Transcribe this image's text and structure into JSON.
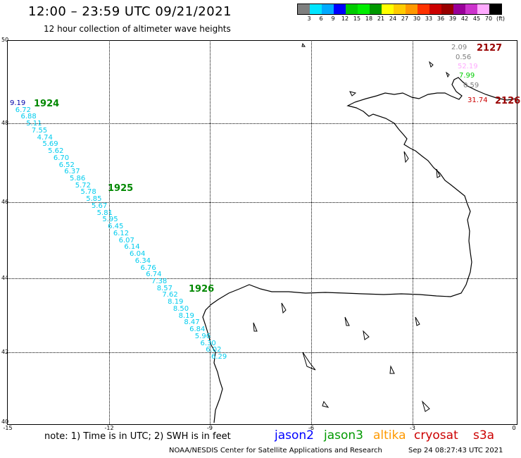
{
  "header": {
    "title": "12:00 – 23:59 UTC 09/21/2021",
    "subtitle": "12 hour collection of altimeter wave heights"
  },
  "color_scale": {
    "labels": [
      "3",
      "6",
      "9",
      "12",
      "15",
      "18",
      "21",
      "24",
      "27",
      "30",
      "33",
      "36",
      "39",
      "42",
      "45",
      "70",
      "(ft)"
    ],
    "colors": [
      "#7f7f7f",
      "#00e5ff",
      "#00aaff",
      "#0000ff",
      "#00cc00",
      "#00ee00",
      "#009900",
      "#ffff00",
      "#ffcc00",
      "#ff9900",
      "#ff3300",
      "#cc0000",
      "#990000",
      "#990099",
      "#cc33cc",
      "#ffaaff",
      "#000000"
    ]
  },
  "axes": {
    "lat_labels": [
      "50",
      "48",
      "46",
      "44",
      "42",
      "40"
    ],
    "lon_labels": [
      "-15",
      "-12",
      "-9",
      "-6",
      "-3",
      "0"
    ]
  },
  "pass_labels": [
    {
      "id": "1924",
      "color": "#008800"
    },
    {
      "id": "1925",
      "color": "#008800"
    },
    {
      "id": "1926",
      "color": "#008800"
    },
    {
      "id": "2127",
      "color": "#990000"
    },
    {
      "id": "2126",
      "color": "#990000"
    }
  ],
  "track_values": [
    "9.19",
    "6.72",
    "6.88",
    "5.11",
    "7.55",
    "4.74",
    "5.69",
    "5.62",
    "6.70",
    "6.52",
    "6.37",
    "5.86",
    "5.72",
    "5.78",
    "5.85",
    "5.67",
    "5.81",
    "5.95",
    "6.45",
    "6.12",
    "6.07",
    "6.14",
    "6.04",
    "6.34",
    "6.76",
    "6.74",
    "7.38",
    "8.57",
    "7.62",
    "8.19",
    "8.50",
    "8.19",
    "8.47",
    "6.84",
    "5.96",
    "6.30",
    "6.02",
    "6.29"
  ],
  "ne_values": [
    {
      "v": "2.09",
      "c": "#7f7f7f"
    },
    {
      "v": "0.56",
      "c": "#7f7f7f"
    },
    {
      "v": "52.19",
      "c": "#ffaaff"
    },
    {
      "v": "7.99",
      "c": "#00cc00"
    },
    {
      "v": "0.59",
      "c": "#7f7f7f"
    },
    {
      "v": "31.74",
      "c": "#cc0000"
    }
  ],
  "footer": {
    "note": "note: 1) Time is in UTC; 2) SWH is in feet",
    "center": "NOAA/NESDIS Center for Satellite Applications and Research",
    "timestamp": "Sep 24 08:27:43 UTC 2021"
  },
  "legend": [
    {
      "label": "jason2",
      "color": "#0000ff"
    },
    {
      "label": "jason3",
      "color": "#009900"
    },
    {
      "label": "altika",
      "color": "#ff9900"
    },
    {
      "label": "cryosat",
      "color": "#cc0000"
    },
    {
      "label": "s3a",
      "color": "#cc0000"
    }
  ]
}
